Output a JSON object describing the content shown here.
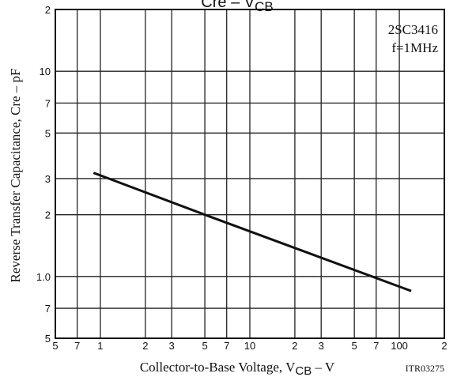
{
  "chart_data": {
    "type": "line",
    "title": [
      "Cre – V",
      "CB"
    ],
    "xlabel": [
      "Collector-to-Base Voltage, V",
      "CB",
      " – V"
    ],
    "ylabel": "Reverse Transfer Capacitance, Cre – pF",
    "annotations": [
      "2SC3416",
      "f=1MHz",
      "ITR03275"
    ],
    "log_x": true,
    "log_y": true,
    "grid": true,
    "xlim": [
      0.5,
      200
    ],
    "ylim": [
      0.5,
      20
    ],
    "xticks": [
      {
        "value": 0.5,
        "label": "5"
      },
      {
        "value": 0.7,
        "label": "7"
      },
      1.0,
      2,
      3,
      5,
      7,
      10,
      {
        "value": 20,
        "label": "2"
      },
      {
        "value": 30,
        "label": "3"
      },
      {
        "value": 50,
        "label": "5"
      },
      {
        "value": 70,
        "label": "7"
      },
      100,
      {
        "value": 200,
        "label": "2"
      }
    ],
    "yticks": [
      {
        "value": 0.5,
        "label": "5"
      },
      {
        "value": 0.7,
        "label": "7"
      },
      {
        "value": 1.0,
        "label": "1.0"
      },
      2,
      3,
      5,
      7,
      10,
      {
        "value": 20,
        "label": "2"
      }
    ],
    "x": [
      0.9,
      5,
      120
    ],
    "series": [
      {
        "color": "#111111",
        "values": [
          3.2,
          2.0,
          0.85
        ]
      }
    ]
  }
}
